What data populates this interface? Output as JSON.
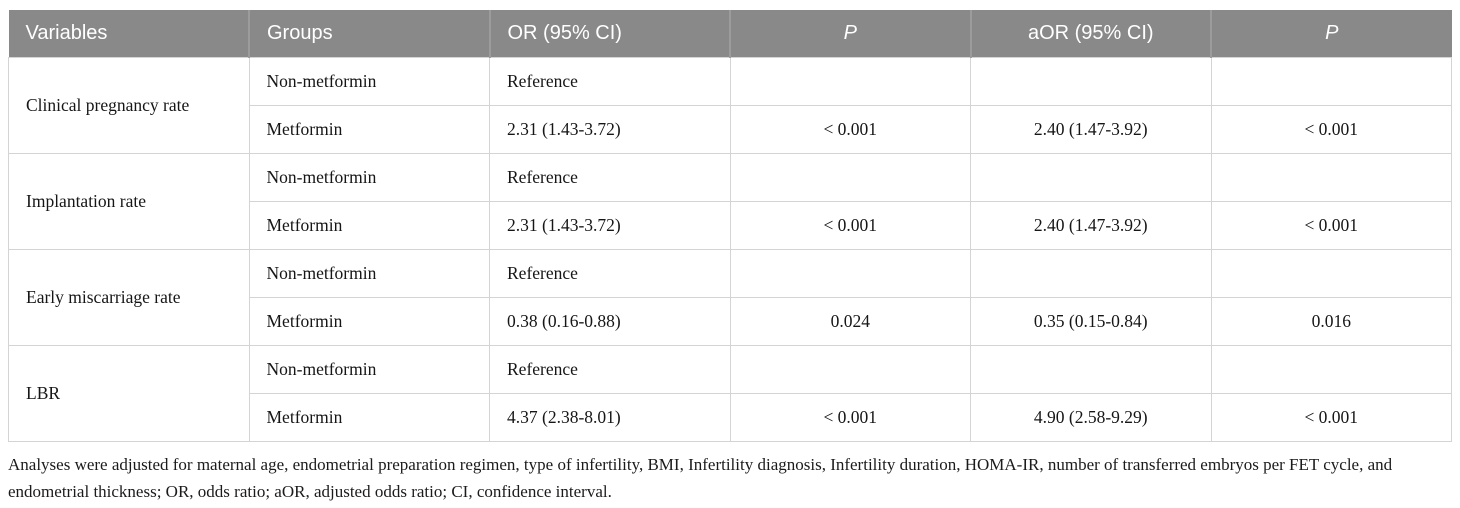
{
  "table": {
    "columns": [
      {
        "label": "Variables",
        "align": "left",
        "italic": false
      },
      {
        "label": "Groups",
        "align": "left",
        "italic": false
      },
      {
        "label": "OR (95% CI)",
        "align": "left",
        "italic": false
      },
      {
        "label": "P",
        "align": "center",
        "italic": true
      },
      {
        "label": "aOR (95% CI)",
        "align": "center",
        "italic": false
      },
      {
        "label": "P",
        "align": "center",
        "italic": true
      }
    ],
    "groups": [
      {
        "variable": "Clinical pregnancy rate",
        "rows": [
          {
            "group": "Non-metformin",
            "or": "Reference",
            "p": "",
            "aor": "",
            "ap": ""
          },
          {
            "group": "Metformin",
            "or": "2.31 (1.43-3.72)",
            "p": "< 0.001",
            "aor": "2.40 (1.47-3.92)",
            "ap": "< 0.001"
          }
        ]
      },
      {
        "variable": "Implantation rate",
        "rows": [
          {
            "group": "Non-metformin",
            "or": "Reference",
            "p": "",
            "aor": "",
            "ap": ""
          },
          {
            "group": "Metformin",
            "or": "2.31 (1.43-3.72)",
            "p": "< 0.001",
            "aor": "2.40 (1.47-3.92)",
            "ap": "< 0.001"
          }
        ]
      },
      {
        "variable": "Early miscarriage rate",
        "rows": [
          {
            "group": "Non-metformin",
            "or": "Reference",
            "p": "",
            "aor": "",
            "ap": ""
          },
          {
            "group": "Metformin",
            "or": "0.38 (0.16-0.88)",
            "p": "0.024",
            "aor": "0.35 (0.15-0.84)",
            "ap": "0.016"
          }
        ]
      },
      {
        "variable": "LBR",
        "rows": [
          {
            "group": "Non-metformin",
            "or": "Reference",
            "p": "",
            "aor": "",
            "ap": ""
          },
          {
            "group": "Metformin",
            "or": "4.37 (2.38-8.01)",
            "p": "< 0.001",
            "aor": "4.90 (2.58-9.29)",
            "ap": "< 0.001"
          }
        ]
      }
    ]
  },
  "footnote": "Analyses were adjusted for maternal age, endometrial preparation regimen, type of infertility, BMI, Infertility diagnosis, Infertility duration, HOMA-IR, number of transferred embryos per FET cycle, and endometrial thickness; OR, odds ratio; aOR, adjusted odds ratio; CI, confidence interval.",
  "colors": {
    "header_bg": "#898989",
    "header_divider": "#9c9c9c",
    "header_text": "#ffffff",
    "body_border": "#d4d4d4",
    "body_text": "#161616"
  }
}
